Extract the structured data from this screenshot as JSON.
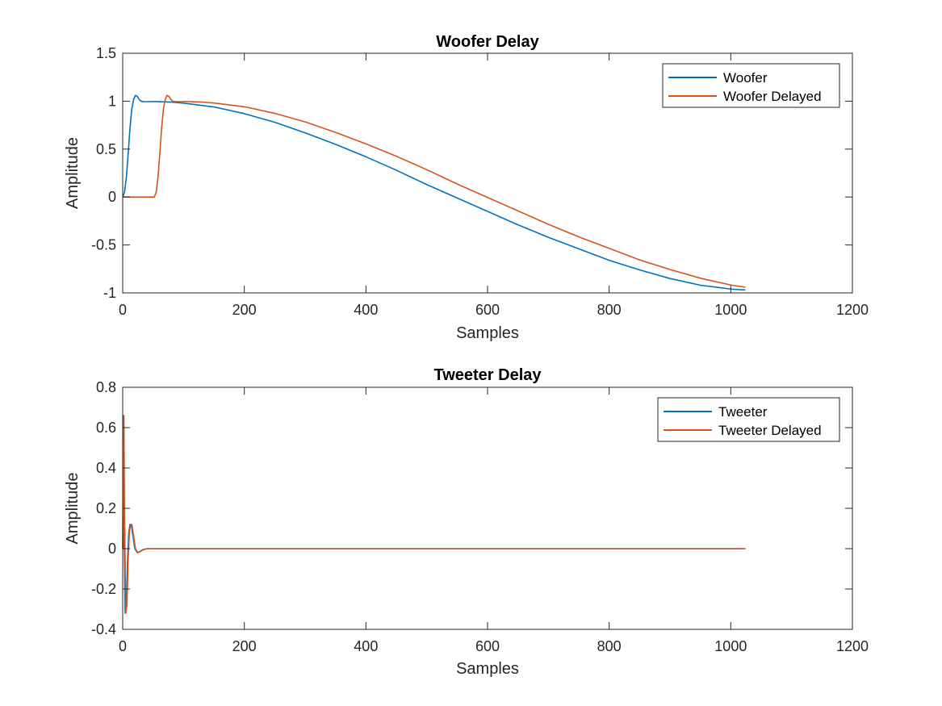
{
  "colors": {
    "series1": "#0072BD",
    "series2": "#D95319",
    "axis": "#262626",
    "background": "#ffffff"
  },
  "chart_data": [
    {
      "type": "line",
      "title": "Woofer Delay",
      "xlabel": "Samples",
      "ylabel": "Amplitude",
      "xlim": [
        0,
        1200
      ],
      "ylim": [
        -1,
        1.5
      ],
      "xticks": [
        0,
        200,
        400,
        600,
        800,
        1000,
        1200
      ],
      "yticks": [
        -1,
        -0.5,
        0,
        0.5,
        1,
        1.5
      ],
      "xtick_labels": [
        "0",
        "200",
        "400",
        "600",
        "800",
        "1000",
        "1200"
      ],
      "ytick_labels": [
        "-1",
        "-0.5",
        "0",
        "0.5",
        "1",
        "1.5"
      ],
      "grid": false,
      "legend_position": "top-right",
      "series": [
        {
          "name": "Woofer",
          "color": "#0072BD",
          "x": [
            0,
            3,
            6,
            9,
            12,
            15,
            18,
            21,
            24,
            27,
            30,
            35,
            40,
            50,
            60,
            80,
            100,
            150,
            200,
            250,
            300,
            350,
            400,
            450,
            500,
            550,
            600,
            650,
            700,
            750,
            800,
            850,
            900,
            950,
            1000,
            1024
          ],
          "y": [
            0,
            0.05,
            0.2,
            0.45,
            0.72,
            0.92,
            1.02,
            1.06,
            1.05,
            1.02,
            1.0,
            0.995,
            0.995,
            0.997,
            0.994,
            0.99,
            0.98,
            0.94,
            0.87,
            0.78,
            0.67,
            0.55,
            0.42,
            0.28,
            0.13,
            -0.01,
            -0.15,
            -0.29,
            -0.42,
            -0.54,
            -0.66,
            -0.76,
            -0.85,
            -0.92,
            -0.96,
            -0.97
          ]
        },
        {
          "name": "Woofer Delayed",
          "color": "#D95319",
          "x": [
            0,
            50,
            52,
            55,
            58,
            61,
            64,
            67,
            70,
            73,
            76,
            79,
            82,
            87,
            92,
            102,
            112,
            132,
            152,
            202,
            252,
            302,
            352,
            402,
            452,
            502,
            552,
            602,
            652,
            702,
            752,
            802,
            852,
            902,
            952,
            1002,
            1024
          ],
          "y": [
            0,
            0,
            0,
            0.05,
            0.2,
            0.45,
            0.72,
            0.92,
            1.02,
            1.06,
            1.05,
            1.02,
            1.0,
            0.995,
            0.995,
            0.997,
            0.994,
            0.99,
            0.98,
            0.94,
            0.87,
            0.78,
            0.67,
            0.55,
            0.42,
            0.28,
            0.13,
            -0.01,
            -0.15,
            -0.29,
            -0.42,
            -0.54,
            -0.66,
            -0.76,
            -0.85,
            -0.92,
            -0.94
          ]
        }
      ]
    },
    {
      "type": "line",
      "title": "Tweeter Delay",
      "xlabel": "Samples",
      "ylabel": "Amplitude",
      "xlim": [
        0,
        1200
      ],
      "ylim": [
        -0.4,
        0.8
      ],
      "xticks": [
        0,
        200,
        400,
        600,
        800,
        1000,
        1200
      ],
      "yticks": [
        -0.4,
        -0.2,
        0,
        0.2,
        0.4,
        0.6,
        0.8
      ],
      "xtick_labels": [
        "0",
        "200",
        "400",
        "600",
        "800",
        "1000",
        "1200"
      ],
      "ytick_labels": [
        "-0.4",
        "-0.2",
        "0",
        "0.2",
        "0.4",
        "0.6",
        "0.8"
      ],
      "grid": false,
      "legend_position": "top-right",
      "series": [
        {
          "name": "Tweeter",
          "color": "#0072BD",
          "x": [
            0,
            1,
            2,
            4,
            6,
            8,
            10,
            12,
            14,
            17,
            20,
            24,
            28,
            33,
            40,
            50,
            100,
            500,
            1024
          ],
          "y": [
            0,
            0.66,
            0.2,
            -0.32,
            -0.28,
            -0.05,
            0.08,
            0.12,
            0.12,
            0.06,
            0.0,
            -0.02,
            -0.015,
            -0.005,
            0.0,
            0.0,
            0.0,
            0.0,
            0.0
          ]
        },
        {
          "name": "Tweeter Delayed",
          "color": "#D95319",
          "x": [
            0,
            1,
            2,
            3,
            5,
            7,
            9,
            11,
            13,
            15,
            18,
            21,
            25,
            29,
            34,
            41,
            51,
            101,
            501,
            1024
          ],
          "y": [
            0,
            0,
            0.66,
            0.2,
            -0.32,
            -0.28,
            -0.05,
            0.08,
            0.12,
            0.12,
            0.06,
            0.0,
            -0.02,
            -0.015,
            -0.005,
            0.0,
            0.0,
            0.0,
            0.0,
            0.0
          ]
        }
      ]
    }
  ]
}
